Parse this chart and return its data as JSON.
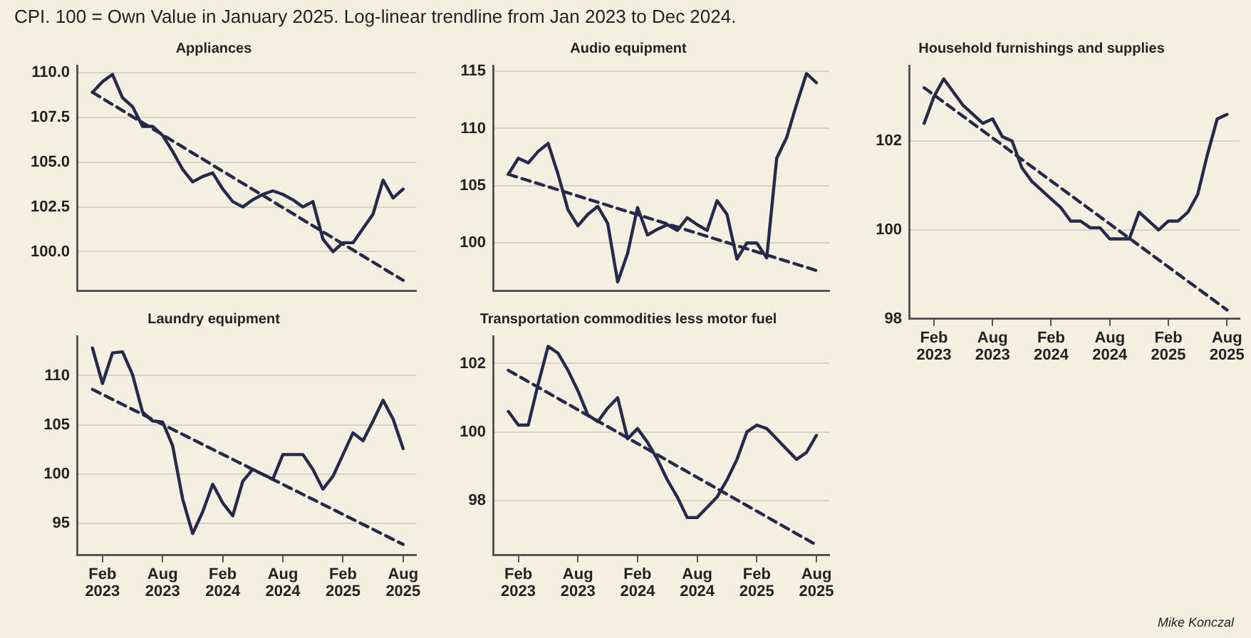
{
  "chart_data": [
    {
      "type": "line",
      "title": "Appliances",
      "annotations": [
        "CPI. 100 = Own Value in January 2025. Log-linear trendline from Jan 2023 to Dec 2024."
      ],
      "x": [
        "2023-01",
        "2023-02",
        "2023-03",
        "2023-04",
        "2023-05",
        "2023-06",
        "2023-07",
        "2023-08",
        "2023-09",
        "2023-10",
        "2023-11",
        "2023-12",
        "2024-01",
        "2024-02",
        "2024-03",
        "2024-04",
        "2024-05",
        "2024-06",
        "2024-07",
        "2024-08",
        "2024-09",
        "2024-10",
        "2024-11",
        "2024-12",
        "2025-01",
        "2025-02",
        "2025-03",
        "2025-04",
        "2025-05",
        "2025-06",
        "2025-07",
        "2025-08"
      ],
      "series": [
        {
          "color": "#262a4a",
          "line_style": "solid",
          "values": [
            108.9,
            109.5,
            109.9,
            108.6,
            108.1,
            107.0,
            107.0,
            106.5,
            105.6,
            104.6,
            103.9,
            104.2,
            104.4,
            103.5,
            102.8,
            102.5,
            102.9,
            103.2,
            103.4,
            103.2,
            102.9,
            102.5,
            102.8,
            100.7,
            100.0,
            100.5,
            100.5,
            101.3,
            102.1,
            104.0,
            103.0,
            103.5
          ]
        },
        {
          "type": "line",
          "color": "#262a4a",
          "line_style": "dashed",
          "x": [
            "2023-01",
            "2025-08"
          ],
          "values": [
            108.9,
            98.4
          ]
        }
      ],
      "xlim": [
        "2022-11-15",
        "2025-09-10"
      ],
      "ylim": [
        97.8,
        110.4
      ],
      "yticks": [
        {
          "value": 100,
          "label": "100.0"
        },
        102.5,
        {
          "value": 105,
          "label": "105.0"
        },
        107.5,
        {
          "value": 110,
          "label": "110.0"
        }
      ],
      "tick_labels": "y",
      "grid": "y",
      "legend": false,
      "marker": "none"
    },
    {
      "type": "line",
      "title": "Audio equipment",
      "x": [
        "2023-01",
        "2023-02",
        "2023-03",
        "2023-04",
        "2023-05",
        "2023-06",
        "2023-07",
        "2023-08",
        "2023-09",
        "2023-10",
        "2023-11",
        "2023-12",
        "2024-01",
        "2024-02",
        "2024-03",
        "2024-04",
        "2024-05",
        "2024-06",
        "2024-07",
        "2024-08",
        "2024-09",
        "2024-10",
        "2024-11",
        "2024-12",
        "2025-01",
        "2025-02",
        "2025-03",
        "2025-04",
        "2025-05",
        "2025-06",
        "2025-07",
        "2025-08"
      ],
      "series": [
        {
          "color": "#262a4a",
          "line_style": "solid",
          "values": [
            106.0,
            107.4,
            107.0,
            108.0,
            108.7,
            106.0,
            102.9,
            101.5,
            102.5,
            103.2,
            101.7,
            96.6,
            99.1,
            103.1,
            100.7,
            101.2,
            101.6,
            101.1,
            102.2,
            101.6,
            101.1,
            103.7,
            102.5,
            98.6,
            100.0,
            100.0,
            98.7,
            107.4,
            109.2,
            112.1,
            114.8,
            114.0
          ]
        },
        {
          "type": "line",
          "color": "#262a4a",
          "line_style": "dashed",
          "x": [
            "2023-01",
            "2025-08"
          ],
          "values": [
            106.0,
            97.6
          ]
        }
      ],
      "xlim": [
        "2022-11-15",
        "2025-09-10"
      ],
      "ylim": [
        95.8,
        115.5
      ],
      "yticks": [
        100,
        105,
        110,
        115
      ],
      "tick_labels": "y",
      "grid": "y",
      "legend": false,
      "marker": "none"
    },
    {
      "type": "line",
      "title": "Household furnishings and supplies",
      "x": [
        "2023-01",
        "2023-02",
        "2023-03",
        "2023-04",
        "2023-05",
        "2023-06",
        "2023-07",
        "2023-08",
        "2023-09",
        "2023-10",
        "2023-11",
        "2023-12",
        "2024-01",
        "2024-02",
        "2024-03",
        "2024-04",
        "2024-05",
        "2024-06",
        "2024-07",
        "2024-08",
        "2024-09",
        "2024-10",
        "2024-11",
        "2024-12",
        "2025-01",
        "2025-02",
        "2025-03",
        "2025-04",
        "2025-05",
        "2025-06",
        "2025-07",
        "2025-08"
      ],
      "series": [
        {
          "color": "#262a4a",
          "line_style": "solid",
          "values": [
            102.4,
            103.0,
            103.4,
            103.1,
            102.8,
            102.6,
            102.4,
            102.5,
            102.1,
            102.0,
            101.4,
            101.1,
            100.9,
            100.7,
            100.5,
            100.2,
            100.2,
            100.05,
            100.05,
            99.8,
            99.8,
            99.8,
            100.4,
            100.2,
            100.0,
            100.2,
            100.2,
            100.4,
            100.8,
            101.7,
            102.5,
            102.6
          ]
        },
        {
          "type": "line",
          "color": "#262a4a",
          "line_style": "dashed",
          "x": [
            "2023-01",
            "2025-08"
          ],
          "values": [
            103.2,
            98.2
          ]
        }
      ],
      "xlim": [
        "2022-11-15",
        "2025-09-10"
      ],
      "ylim": [
        98,
        103.7
      ],
      "yticks": [
        98,
        100,
        102
      ],
      "xticks": [
        {
          "value": "2023-02",
          "label": "Feb 2023"
        },
        {
          "value": "2023-08",
          "label": "Aug 2023"
        },
        {
          "value": "2024-02",
          "label": "Feb 2024"
        },
        {
          "value": "2024-08",
          "label": "Aug 2024"
        },
        {
          "value": "2025-02",
          "label": "Feb 2025"
        },
        {
          "value": "2025-08",
          "label": "Aug 2025"
        }
      ],
      "grid": "y",
      "legend": false,
      "marker": "none"
    },
    {
      "type": "line",
      "title": "Laundry equipment",
      "x": [
        "2023-01",
        "2023-02",
        "2023-03",
        "2023-04",
        "2023-05",
        "2023-06",
        "2023-07",
        "2023-08",
        "2023-09",
        "2023-10",
        "2023-11",
        "2023-12",
        "2024-01",
        "2024-02",
        "2024-03",
        "2024-04",
        "2024-05",
        "2024-06",
        "2024-07",
        "2024-08",
        "2024-09",
        "2024-10",
        "2024-11",
        "2024-12",
        "2025-01",
        "2025-02",
        "2025-03",
        "2025-04",
        "2025-05",
        "2025-06",
        "2025-07",
        "2025-08"
      ],
      "series": [
        {
          "color": "#262a4a",
          "line_style": "solid",
          "values": [
            112.8,
            109.2,
            112.3,
            112.4,
            110.1,
            106.3,
            105.4,
            105.3,
            102.9,
            97.5,
            94.0,
            96.2,
            99.0,
            97.1,
            95.8,
            99.3,
            100.5,
            100.0,
            99.5,
            102.0,
            102.0,
            102.0,
            100.5,
            98.5,
            99.8,
            102.0,
            104.2,
            103.4,
            105.4,
            107.5,
            105.6,
            102.6
          ]
        },
        {
          "type": "line",
          "color": "#262a4a",
          "line_style": "dashed",
          "x": [
            "2023-01",
            "2025-08"
          ],
          "values": [
            108.6,
            92.9
          ]
        }
      ],
      "xlim": [
        "2022-11-15",
        "2025-09-10"
      ],
      "ylim": [
        91.8,
        114
      ],
      "yticks": [
        95,
        100,
        105,
        110
      ],
      "xticks": [
        {
          "value": "2023-02",
          "label": "Feb 2023"
        },
        {
          "value": "2023-08",
          "label": "Aug 2023"
        },
        {
          "value": "2024-02",
          "label": "Feb 2024"
        },
        {
          "value": "2024-08",
          "label": "Aug 2024"
        },
        {
          "value": "2025-02",
          "label": "Feb 2025"
        },
        {
          "value": "2025-08",
          "label": "Aug 2025"
        }
      ],
      "grid": "y",
      "legend": false,
      "marker": "none"
    },
    {
      "type": "line",
      "title": "Transportation commodities less motor fuel",
      "annotations": [
        "Mike Konczal"
      ],
      "x": [
        "2023-01",
        "2023-02",
        "2023-03",
        "2023-04",
        "2023-05",
        "2023-06",
        "2023-07",
        "2023-08",
        "2023-09",
        "2023-10",
        "2023-11",
        "2023-12",
        "2024-01",
        "2024-02",
        "2024-03",
        "2024-04",
        "2024-05",
        "2024-06",
        "2024-07",
        "2024-08",
        "2024-09",
        "2024-10",
        "2024-11",
        "2024-12",
        "2025-01",
        "2025-02",
        "2025-03",
        "2025-04",
        "2025-05",
        "2025-06",
        "2025-07",
        "2025-08"
      ],
      "series": [
        {
          "color": "#262a4a",
          "line_style": "solid",
          "values": [
            100.6,
            100.2,
            100.2,
            101.4,
            102.5,
            102.3,
            101.8,
            101.2,
            100.5,
            100.3,
            100.7,
            101.0,
            99.8,
            100.1,
            99.7,
            99.2,
            98.6,
            98.1,
            97.5,
            97.5,
            97.8,
            98.1,
            98.6,
            99.2,
            100.0,
            100.2,
            100.1,
            99.8,
            99.5,
            99.2,
            99.4,
            99.9
          ]
        },
        {
          "type": "line",
          "color": "#262a4a",
          "line_style": "dashed",
          "x": [
            "2023-01",
            "2025-08"
          ],
          "values": [
            101.8,
            96.7
          ]
        }
      ],
      "xlim": [
        "2022-11-15",
        "2025-09-10"
      ],
      "ylim": [
        96.4,
        102.8
      ],
      "yticks": [
        98,
        100,
        102
      ],
      "xticks": [
        {
          "value": "2023-02",
          "label": "Feb 2023"
        },
        {
          "value": "2023-08",
          "label": "Aug 2023"
        },
        {
          "value": "2024-02",
          "label": "Feb 2024"
        },
        {
          "value": "2024-08",
          "label": "Aug 2024"
        },
        {
          "value": "2025-02",
          "label": "Feb 2025"
        },
        {
          "value": "2025-08",
          "label": "Aug 2025"
        }
      ],
      "grid": "y",
      "legend": false,
      "marker": "none"
    }
  ]
}
